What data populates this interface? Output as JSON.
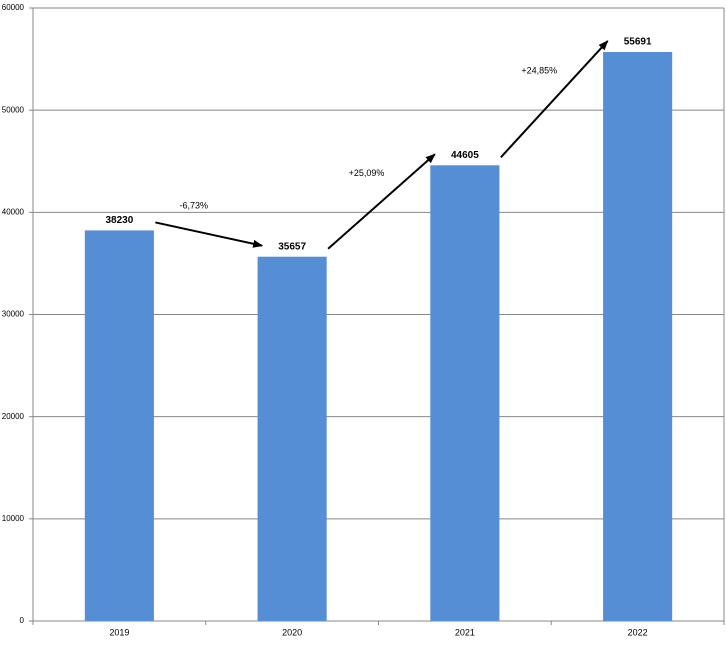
{
  "chart_data": {
    "type": "bar",
    "categories": [
      "2019",
      "2020",
      "2021",
      "2022"
    ],
    "values": [
      38230,
      35657,
      44605,
      55691
    ],
    "color": "#558ed5",
    "ylim": [
      0,
      60000
    ],
    "yticks": [
      0,
      10000,
      20000,
      30000,
      40000,
      50000,
      60000
    ],
    "grid": true,
    "annotations": [
      "-6,73%",
      "+25,09%",
      "+24,85%"
    ]
  }
}
